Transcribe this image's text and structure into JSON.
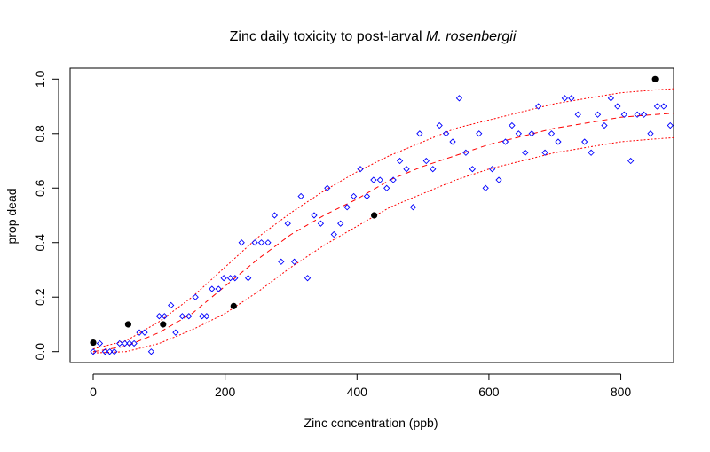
{
  "chart_data": {
    "type": "scatter",
    "title": {
      "prefix": "Zinc daily toxicity to post-larval ",
      "italic": "M. rosenbergii"
    },
    "xlabel": "Zinc concentration (ppb)",
    "ylabel": "prop dead",
    "xlim": [
      -35,
      880
    ],
    "ylim": [
      -0.04,
      1.04
    ],
    "x_ticks": [
      0,
      200,
      400,
      600,
      800
    ],
    "x_tick_labels": [
      "0",
      "200",
      "400",
      "600",
      "800"
    ],
    "y_ticks": [
      0.0,
      0.2,
      0.4,
      0.6,
      0.8,
      1.0
    ],
    "y_tick_labels": [
      "0.0",
      "0.2",
      "0.4",
      "0.6",
      "0.8",
      "1.0"
    ],
    "grid": false,
    "series": [
      {
        "kind": "simulated-points",
        "marker": "open-diamond",
        "color": "#0000ff",
        "points": [
          [
            0,
            0.0
          ],
          [
            10,
            0.03
          ],
          [
            18,
            0.0
          ],
          [
            25,
            0.0
          ],
          [
            32,
            0.0
          ],
          [
            40,
            0.03
          ],
          [
            48,
            0.03
          ],
          [
            55,
            0.03
          ],
          [
            62,
            0.03
          ],
          [
            70,
            0.07
          ],
          [
            78,
            0.07
          ],
          [
            88,
            0.0
          ],
          [
            100,
            0.13
          ],
          [
            108,
            0.13
          ],
          [
            118,
            0.17
          ],
          [
            125,
            0.07
          ],
          [
            135,
            0.13
          ],
          [
            145,
            0.13
          ],
          [
            155,
            0.2
          ],
          [
            165,
            0.13
          ],
          [
            172,
            0.13
          ],
          [
            180,
            0.23
          ],
          [
            190,
            0.23
          ],
          [
            198,
            0.27
          ],
          [
            208,
            0.27
          ],
          [
            215,
            0.27
          ],
          [
            225,
            0.4
          ],
          [
            235,
            0.27
          ],
          [
            245,
            0.4
          ],
          [
            255,
            0.4
          ],
          [
            265,
            0.4
          ],
          [
            275,
            0.5
          ],
          [
            285,
            0.33
          ],
          [
            295,
            0.47
          ],
          [
            305,
            0.33
          ],
          [
            315,
            0.57
          ],
          [
            325,
            0.27
          ],
          [
            335,
            0.5
          ],
          [
            345,
            0.47
          ],
          [
            355,
            0.6
          ],
          [
            365,
            0.43
          ],
          [
            375,
            0.47
          ],
          [
            385,
            0.53
          ],
          [
            395,
            0.57
          ],
          [
            405,
            0.67
          ],
          [
            415,
            0.57
          ],
          [
            425,
            0.63
          ],
          [
            435,
            0.63
          ],
          [
            445,
            0.6
          ],
          [
            455,
            0.63
          ],
          [
            465,
            0.7
          ],
          [
            475,
            0.67
          ],
          [
            485,
            0.53
          ],
          [
            495,
            0.8
          ],
          [
            505,
            0.7
          ],
          [
            515,
            0.67
          ],
          [
            525,
            0.83
          ],
          [
            535,
            0.8
          ],
          [
            545,
            0.77
          ],
          [
            555,
            0.93
          ],
          [
            565,
            0.73
          ],
          [
            575,
            0.67
          ],
          [
            585,
            0.8
          ],
          [
            595,
            0.6
          ],
          [
            605,
            0.67
          ],
          [
            615,
            0.63
          ],
          [
            625,
            0.77
          ],
          [
            635,
            0.83
          ],
          [
            645,
            0.8
          ],
          [
            655,
            0.73
          ],
          [
            665,
            0.8
          ],
          [
            675,
            0.9
          ],
          [
            685,
            0.73
          ],
          [
            695,
            0.8
          ],
          [
            705,
            0.77
          ],
          [
            715,
            0.93
          ],
          [
            725,
            0.93
          ],
          [
            735,
            0.87
          ],
          [
            745,
            0.77
          ],
          [
            755,
            0.73
          ],
          [
            765,
            0.87
          ],
          [
            775,
            0.83
          ],
          [
            785,
            0.93
          ],
          [
            795,
            0.9
          ],
          [
            805,
            0.87
          ],
          [
            815,
            0.7
          ],
          [
            825,
            0.87
          ],
          [
            835,
            0.87
          ],
          [
            845,
            0.8
          ],
          [
            855,
            0.9
          ],
          [
            865,
            0.9
          ],
          [
            875,
            0.83
          ]
        ]
      },
      {
        "kind": "observed-points",
        "marker": "filled-circle",
        "color": "#000000",
        "points": [
          [
            0,
            0.033
          ],
          [
            53,
            0.1
          ],
          [
            106,
            0.1
          ],
          [
            213,
            0.167
          ],
          [
            426,
            0.5
          ],
          [
            852,
            1.0
          ]
        ]
      },
      {
        "kind": "fitted-curve",
        "line": "dashed",
        "color": "#ff0000",
        "points": [
          [
            0,
            0.0
          ],
          [
            50,
            0.02
          ],
          [
            100,
            0.07
          ],
          [
            150,
            0.14
          ],
          [
            200,
            0.24
          ],
          [
            250,
            0.34
          ],
          [
            300,
            0.43
          ],
          [
            350,
            0.5
          ],
          [
            400,
            0.56
          ],
          [
            450,
            0.63
          ],
          [
            500,
            0.68
          ],
          [
            550,
            0.72
          ],
          [
            600,
            0.76
          ],
          [
            650,
            0.79
          ],
          [
            700,
            0.82
          ],
          [
            750,
            0.84
          ],
          [
            800,
            0.86
          ],
          [
            850,
            0.87
          ],
          [
            880,
            0.875
          ]
        ]
      },
      {
        "kind": "upper-band",
        "line": "dotted",
        "color": "#ff0000",
        "points": [
          [
            0,
            0.01
          ],
          [
            50,
            0.04
          ],
          [
            100,
            0.11
          ],
          [
            150,
            0.2
          ],
          [
            200,
            0.31
          ],
          [
            250,
            0.42
          ],
          [
            300,
            0.51
          ],
          [
            350,
            0.59
          ],
          [
            400,
            0.66
          ],
          [
            450,
            0.72
          ],
          [
            500,
            0.77
          ],
          [
            550,
            0.82
          ],
          [
            600,
            0.85
          ],
          [
            650,
            0.88
          ],
          [
            700,
            0.91
          ],
          [
            750,
            0.93
          ],
          [
            800,
            0.95
          ],
          [
            850,
            0.96
          ],
          [
            880,
            0.965
          ]
        ]
      },
      {
        "kind": "lower-band",
        "line": "dotted",
        "color": "#ff0000",
        "points": [
          [
            0,
            -0.005
          ],
          [
            50,
            0.0
          ],
          [
            100,
            0.03
          ],
          [
            150,
            0.08
          ],
          [
            200,
            0.14
          ],
          [
            250,
            0.22
          ],
          [
            300,
            0.31
          ],
          [
            350,
            0.39
          ],
          [
            400,
            0.46
          ],
          [
            450,
            0.53
          ],
          [
            500,
            0.58
          ],
          [
            550,
            0.63
          ],
          [
            600,
            0.67
          ],
          [
            650,
            0.7
          ],
          [
            700,
            0.73
          ],
          [
            750,
            0.75
          ],
          [
            800,
            0.77
          ],
          [
            850,
            0.78
          ],
          [
            880,
            0.785
          ]
        ]
      }
    ]
  }
}
